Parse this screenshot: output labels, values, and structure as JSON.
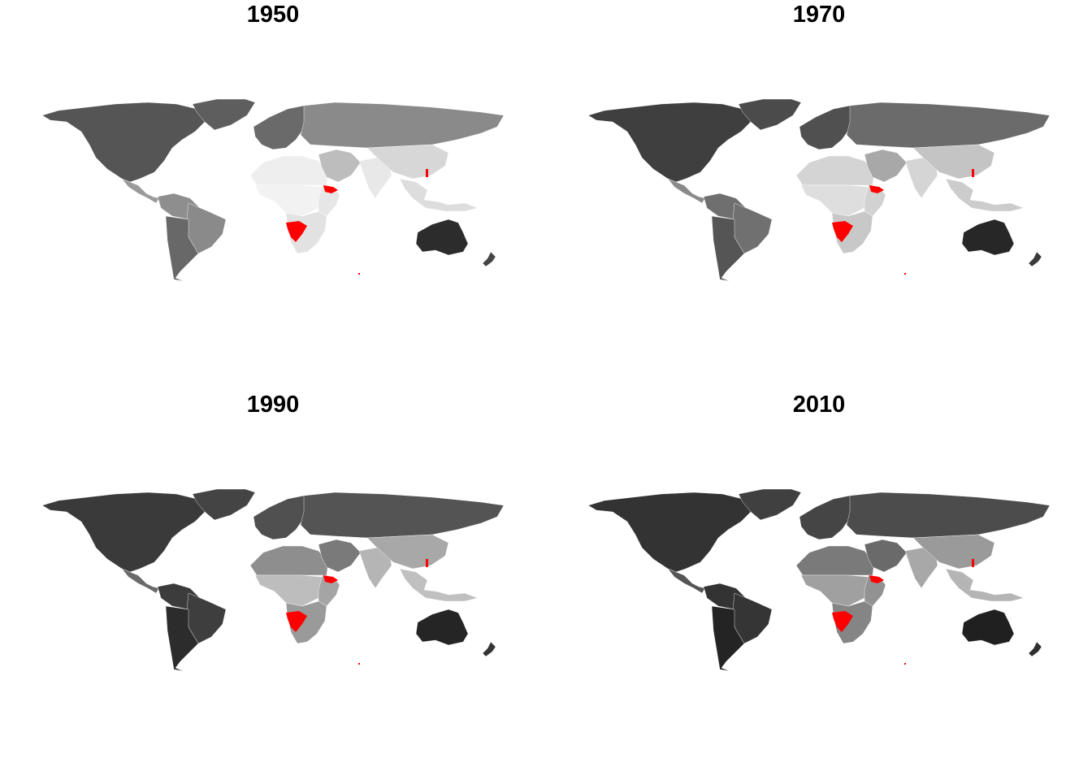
{
  "colors": {
    "highlight": "#ff0000",
    "background": "#ffffff"
  },
  "panels": [
    {
      "title": "1950",
      "shades": {
        "north_america": "#555555",
        "greenland": "#5e5e5e",
        "central_america": "#9a9a9a",
        "south_america_north": "#8e8e8e",
        "south_america_brazil": "#8a8a8a",
        "south_america_south": "#686868",
        "europe": "#6a6a6a",
        "russia": "#8a8a8a",
        "north_africa": "#eeeeee",
        "central_africa": "#f2f2f2",
        "east_africa": "#e6e6e6",
        "southern_africa": "#e2e2e2",
        "middle_east": "#bdbdbd",
        "south_asia": "#e8e8e8",
        "china": "#d7d7d7",
        "se_asia": "#dddddd",
        "australia": "#2c2c2c",
        "new_zealand": "#444444"
      }
    },
    {
      "title": "1970",
      "shades": {
        "north_america": "#3f3f3f",
        "greenland": "#4b4b4b",
        "central_america": "#8a8a8a",
        "south_america_north": "#6f6f6f",
        "south_america_brazil": "#707070",
        "south_america_south": "#555555",
        "europe": "#505050",
        "russia": "#6b6b6b",
        "north_africa": "#d4d4d4",
        "central_africa": "#dedede",
        "east_africa": "#d2d2d2",
        "southern_africa": "#c8c8c8",
        "middle_east": "#a8a8a8",
        "south_asia": "#d5d5d5",
        "china": "#c4c4c4",
        "se_asia": "#cccccc",
        "australia": "#272727",
        "new_zealand": "#3a3a3a"
      }
    },
    {
      "title": "1990",
      "shades": {
        "north_america": "#3a3a3a",
        "greenland": "#444444",
        "central_america": "#6a6a6a",
        "south_america_north": "#3c3c3c",
        "south_america_brazil": "#3e3e3e",
        "south_america_south": "#2c2c2c",
        "europe": "#505050",
        "russia": "#545454",
        "north_africa": "#8e8e8e",
        "central_africa": "#bdbdbd",
        "east_africa": "#a5a5a5",
        "southern_africa": "#9a9a9a",
        "middle_east": "#7a7a7a",
        "south_asia": "#b5b5b5",
        "china": "#a8a8a8",
        "se_asia": "#c0c0c0",
        "australia": "#252525",
        "new_zealand": "#353535"
      }
    },
    {
      "title": "2010",
      "shades": {
        "north_america": "#333333",
        "greenland": "#404040",
        "central_america": "#555555",
        "south_america_north": "#333333",
        "south_america_brazil": "#353535",
        "south_america_south": "#242424",
        "europe": "#454545",
        "russia": "#4c4c4c",
        "north_africa": "#7a7a7a",
        "central_africa": "#a0a0a0",
        "east_africa": "#929292",
        "southern_africa": "#858585",
        "middle_east": "#6a6a6a",
        "south_asia": "#a8a8a8",
        "china": "#9a9a9a",
        "se_asia": "#b5b5b5",
        "australia": "#202020",
        "new_zealand": "#303030"
      }
    }
  ]
}
